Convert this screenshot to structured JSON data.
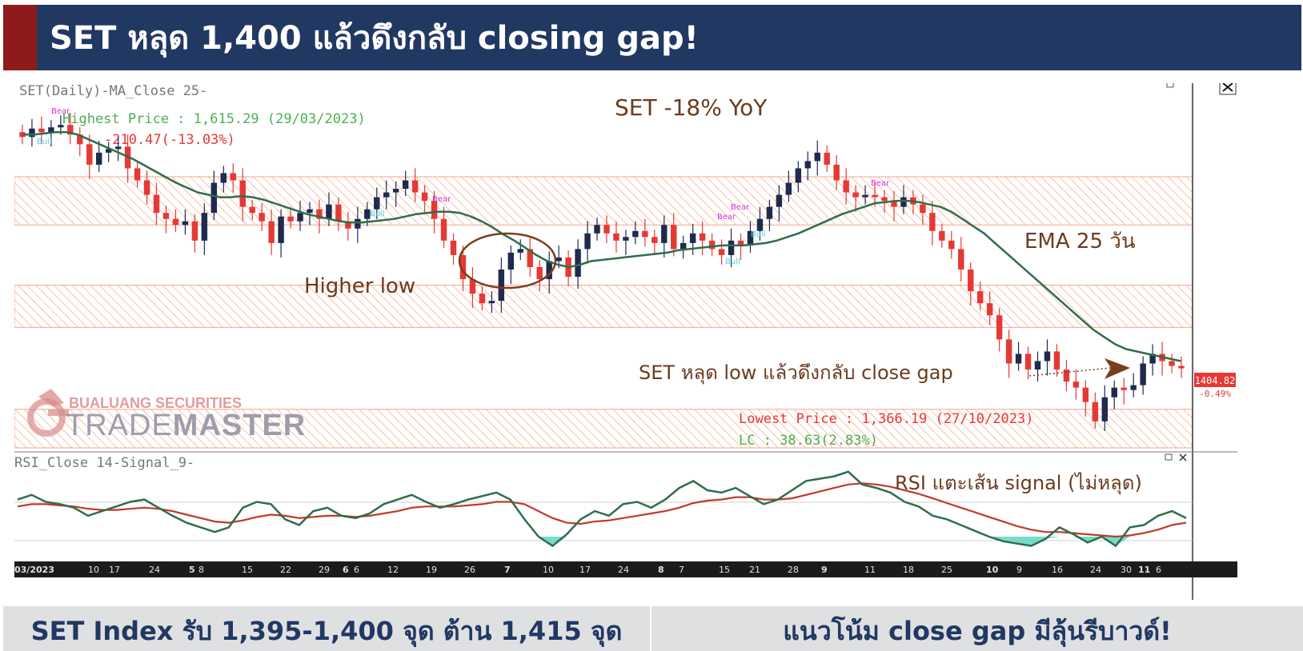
{
  "header": {
    "title": "SET หลุด 1,400 แล้วดึงกลับ closing gap!"
  },
  "footer": {
    "left": "SET Index รับ 1,395-1,400 จุด ต้าน 1,415 จุด",
    "right": "แนวโน้ม close gap มีลุ้นรีบาวด์!"
  },
  "colors": {
    "header_bg": "#213863",
    "accent": "#8e1b1b",
    "up_candle": "#e53935",
    "down_candle": "#1f2a4d",
    "ema": "#2f6e4a",
    "rsi": "#2f6e4a",
    "rsi_signal": "#c0392b",
    "zone": "#f4a58a",
    "annotation": "#6b3b1f"
  },
  "chart_data": [
    {
      "type": "candlestick",
      "legend": "SET(Daily)-MA_Close 25-",
      "x_axis_labels": [
        "03/2023",
        "10",
        "17",
        "24",
        "5",
        "8",
        "15",
        "22",
        "29",
        "6",
        "6",
        "12",
        "19",
        "26",
        "7",
        "10",
        "17",
        "24",
        "8",
        "7",
        "15",
        "21",
        "28",
        "9",
        "11",
        "18",
        "25",
        "10",
        "9",
        "16",
        "24",
        "30",
        "11",
        "6"
      ],
      "current_price": "1404.82",
      "change_pct": "-0.49%",
      "labels": {
        "highest": "Highest Price : 1,615.29 (29/03/2023)",
        "drawdown": "-210.47(-13.03%)",
        "lowest": "Lowest Price : 1,366.19 (27/10/2023)",
        "lc": "LC : 38.63(2.83%)"
      },
      "annotations": {
        "yoy": "SET -18% YoY",
        "ema": "EMA 25 วัน",
        "higher_low": "Higher low",
        "gap": "SET หลุด low แล้วดึงกลับ close gap"
      },
      "signals": {
        "bear": "Bear",
        "bull": "Bull"
      },
      "watermark": {
        "line1": "BUALUANG SECURITIES",
        "line2a": "TRADE",
        "line2b": "MASTER"
      },
      "ylim": [
        1340,
        1640
      ],
      "support_zones": [
        [
          1525,
          1565
        ],
        [
          1440,
          1475
        ],
        [
          1340,
          1372
        ]
      ],
      "close": [
        1598,
        1605,
        1602,
        1606,
        1608,
        1600,
        1592,
        1575,
        1585,
        1588,
        1590,
        1572,
        1562,
        1550,
        1535,
        1530,
        1525,
        1528,
        1512,
        1535,
        1560,
        1568,
        1562,
        1540,
        1535,
        1528,
        1510,
        1532,
        1528,
        1535,
        1538,
        1530,
        1542,
        1528,
        1522,
        1530,
        1538,
        1548,
        1552,
        1555,
        1562,
        1552,
        1545,
        1530,
        1512,
        1500,
        1480,
        1468,
        1460,
        1462,
        1488,
        1502,
        1505,
        1490,
        1480,
        1495,
        1498,
        1482,
        1505,
        1518,
        1525,
        1518,
        1512,
        1515,
        1520,
        1515,
        1510,
        1525,
        1505,
        1510,
        1518,
        1512,
        1505,
        1500,
        1512,
        1508,
        1520,
        1530,
        1540,
        1550,
        1560,
        1572,
        1578,
        1585,
        1575,
        1562,
        1552,
        1548,
        1550,
        1548,
        1545,
        1540,
        1548,
        1542,
        1535,
        1520,
        1512,
        1505,
        1488,
        1470,
        1460,
        1450,
        1430,
        1410,
        1418,
        1405,
        1412,
        1420,
        1405,
        1395,
        1390,
        1378,
        1362,
        1382,
        1390,
        1388,
        1392,
        1410,
        1418,
        1412,
        1408,
        1406
      ],
      "ema25": [
        1600,
        1600,
        1601,
        1602,
        1602,
        1600,
        1596,
        1592,
        1588,
        1584,
        1580,
        1575,
        1570,
        1565,
        1560,
        1556,
        1552,
        1550,
        1548,
        1548,
        1549,
        1548,
        1546,
        1543,
        1540,
        1537,
        1534,
        1532,
        1530,
        1528,
        1527,
        1527,
        1528,
        1529,
        1530,
        1532,
        1534,
        1535,
        1536,
        1536,
        1535,
        1532,
        1528,
        1523,
        1517,
        1512,
        1506,
        1500,
        1495,
        1492,
        1490,
        1492,
        1495,
        1496,
        1497,
        1498,
        1499,
        1500,
        1501,
        1502,
        1504,
        1505,
        1506,
        1507,
        1508,
        1508,
        1508,
        1509,
        1510,
        1512,
        1515,
        1518,
        1522,
        1526,
        1530,
        1534,
        1537,
        1540,
        1543,
        1544,
        1545,
        1545,
        1544,
        1542,
        1540,
        1536,
        1530,
        1524,
        1518,
        1510,
        1502,
        1494,
        1486,
        1478,
        1470,
        1462,
        1454,
        1446,
        1438,
        1432,
        1426,
        1422,
        1420,
        1418,
        1416,
        1414,
        1412
      ],
      "rsi": [
        62,
        66,
        60,
        58,
        55,
        48,
        52,
        56,
        60,
        62,
        55,
        48,
        42,
        38,
        34,
        38,
        55,
        60,
        58,
        45,
        40,
        52,
        55,
        48,
        46,
        50,
        58,
        62,
        66,
        60,
        55,
        58,
        62,
        65,
        68,
        62,
        45,
        30,
        22,
        32,
        45,
        52,
        48,
        58,
        60,
        55,
        62,
        72,
        78,
        70,
        68,
        72,
        65,
        58,
        62,
        70,
        78,
        80,
        82,
        86,
        75,
        72,
        68,
        60,
        56,
        48,
        45,
        40,
        35,
        30,
        26,
        24,
        22,
        28,
        38,
        32,
        25,
        30,
        22,
        38,
        40,
        48,
        52,
        46
      ],
      "rsi_signal": [
        56,
        58,
        58,
        57,
        56,
        54,
        53,
        53,
        54,
        55,
        54,
        52,
        49,
        46,
        43,
        42,
        44,
        47,
        49,
        48,
        46,
        47,
        48,
        48,
        47,
        48,
        50,
        52,
        55,
        56,
        56,
        56,
        57,
        58,
        60,
        60,
        58,
        52,
        46,
        42,
        41,
        43,
        44,
        46,
        48,
        50,
        52,
        55,
        59,
        61,
        62,
        64,
        64,
        62,
        62,
        63,
        66,
        69,
        72,
        75,
        76,
        75,
        73,
        70,
        67,
        63,
        59,
        55,
        51,
        47,
        43,
        39,
        36,
        34,
        34,
        33,
        32,
        31,
        30,
        31,
        33,
        36,
        40,
        42
      ]
    }
  ],
  "rsi_panel": {
    "legend": "RSI_Close 14-Signal_9-",
    "annotation": "RSI แตะเส้น signal (ไม่หลุด)"
  }
}
